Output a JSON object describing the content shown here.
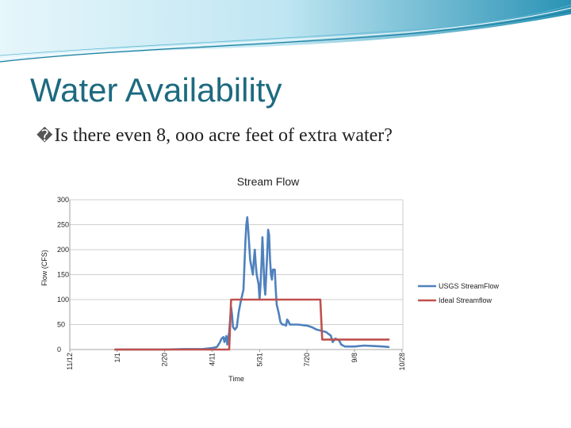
{
  "slide": {
    "title": "Water Availability",
    "bullet_glyph": "�",
    "question": "Is there even 8, ooo acre feet of extra water?"
  },
  "colors": {
    "title": "#1d6a80",
    "usgs": "#4f81bd",
    "ideal": "#c0504d",
    "grid": "#bfbfbf",
    "wave_dark": "#1b7fa0",
    "wave_light": "#bfe6f2"
  },
  "chart_data": {
    "type": "line",
    "title": "Stream Flow",
    "xlabel": "Time",
    "ylabel": "Flow (CFS)",
    "ylim": [
      0,
      300
    ],
    "yticks": [
      0,
      50,
      100,
      150,
      200,
      250,
      300
    ],
    "xlim": [
      0,
      351
    ],
    "xticks": [
      {
        "label": "11/12",
        "day": 0
      },
      {
        "label": "1/1",
        "day": 50
      },
      {
        "label": "2/20",
        "day": 100
      },
      {
        "label": "4/11",
        "day": 150
      },
      {
        "label": "5/31",
        "day": 200
      },
      {
        "label": "7/20",
        "day": 250
      },
      {
        "label": "9/8",
        "day": 300
      },
      {
        "label": "10/28",
        "day": 350
      }
    ],
    "grid": "horizontal",
    "legend": "right",
    "series": [
      {
        "name": "USGS StreamFlow",
        "color": "#4f81bd",
        "points": [
          [
            48,
            0
          ],
          [
            100,
            0
          ],
          [
            120,
            1
          ],
          [
            140,
            1
          ],
          [
            150,
            3
          ],
          [
            155,
            5
          ],
          [
            158,
            14
          ],
          [
            160,
            22
          ],
          [
            162,
            25
          ],
          [
            163,
            15
          ],
          [
            165,
            27
          ],
          [
            166,
            10
          ],
          [
            168,
            35
          ],
          [
            170,
            85
          ],
          [
            171,
            70
          ],
          [
            172,
            45
          ],
          [
            174,
            40
          ],
          [
            176,
            45
          ],
          [
            178,
            75
          ],
          [
            180,
            95
          ],
          [
            183,
            120
          ],
          [
            185,
            215
          ],
          [
            186,
            250
          ],
          [
            187,
            265
          ],
          [
            188,
            240
          ],
          [
            189,
            210
          ],
          [
            190,
            180
          ],
          [
            192,
            160
          ],
          [
            193,
            150
          ],
          [
            194,
            180
          ],
          [
            195,
            200
          ],
          [
            196,
            170
          ],
          [
            197,
            150
          ],
          [
            198,
            140
          ],
          [
            199,
            130
          ],
          [
            200,
            100
          ],
          [
            201,
            130
          ],
          [
            202,
            170
          ],
          [
            203,
            225
          ],
          [
            204,
            180
          ],
          [
            205,
            130
          ],
          [
            206,
            110
          ],
          [
            207,
            150
          ],
          [
            208,
            190
          ],
          [
            209,
            240
          ],
          [
            210,
            230
          ],
          [
            211,
            180
          ],
          [
            212,
            150
          ],
          [
            213,
            140
          ],
          [
            214,
            160
          ],
          [
            216,
            160
          ],
          [
            217,
            120
          ],
          [
            218,
            90
          ],
          [
            220,
            75
          ],
          [
            222,
            55
          ],
          [
            224,
            50
          ],
          [
            226,
            50
          ],
          [
            228,
            48
          ],
          [
            229,
            60
          ],
          [
            230,
            58
          ],
          [
            232,
            50
          ],
          [
            240,
            50
          ],
          [
            250,
            48
          ],
          [
            255,
            45
          ],
          [
            260,
            40
          ],
          [
            270,
            35
          ],
          [
            275,
            28
          ],
          [
            277,
            15
          ],
          [
            280,
            22
          ],
          [
            284,
            18
          ],
          [
            286,
            10
          ],
          [
            288,
            8
          ],
          [
            290,
            6
          ],
          [
            300,
            6
          ],
          [
            310,
            8
          ],
          [
            320,
            7
          ],
          [
            330,
            6
          ],
          [
            336,
            5
          ]
        ]
      },
      {
        "name": "Ideal Streamflow",
        "color": "#c0504d",
        "points": [
          [
            48,
            0
          ],
          [
            168,
            0
          ],
          [
            170,
            100
          ],
          [
            264,
            100
          ],
          [
            266,
            20
          ],
          [
            336,
            20
          ]
        ]
      }
    ]
  }
}
